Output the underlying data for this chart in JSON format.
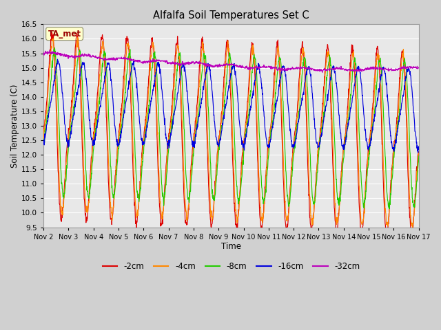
{
  "title": "Alfalfa Soil Temperatures Set C",
  "xlabel": "Time",
  "ylabel": "Soil Temperature (C)",
  "ylim": [
    9.5,
    16.5
  ],
  "colors": {
    "-2cm": "#dd0000",
    "-4cm": "#ff8800",
    "-8cm": "#22cc00",
    "-16cm": "#0000dd",
    "-32cm": "#bb00bb"
  },
  "legend_annotation": "TA_met",
  "legend_ann_color": "#990000",
  "legend_ann_bg": "#ffffcc",
  "fig_bg_color": "#d0d0d0",
  "plot_bg_color": "#e8e8e8",
  "grid_color": "#ffffff",
  "xtick_labels": [
    "Nov 2",
    "Nov 3",
    "Nov 4",
    "Nov 5",
    "Nov 6",
    "Nov 7",
    "Nov 8",
    "Nov 9",
    "Nov 10",
    "Nov 11",
    "Nov 12",
    "Nov 13",
    "Nov 14",
    "Nov 15",
    "Nov 16",
    "Nov 17"
  ],
  "ytick_vals": [
    9.5,
    10.0,
    10.5,
    11.0,
    11.5,
    12.0,
    12.5,
    13.0,
    13.5,
    14.0,
    14.5,
    15.0,
    15.5,
    16.0,
    16.5
  ]
}
